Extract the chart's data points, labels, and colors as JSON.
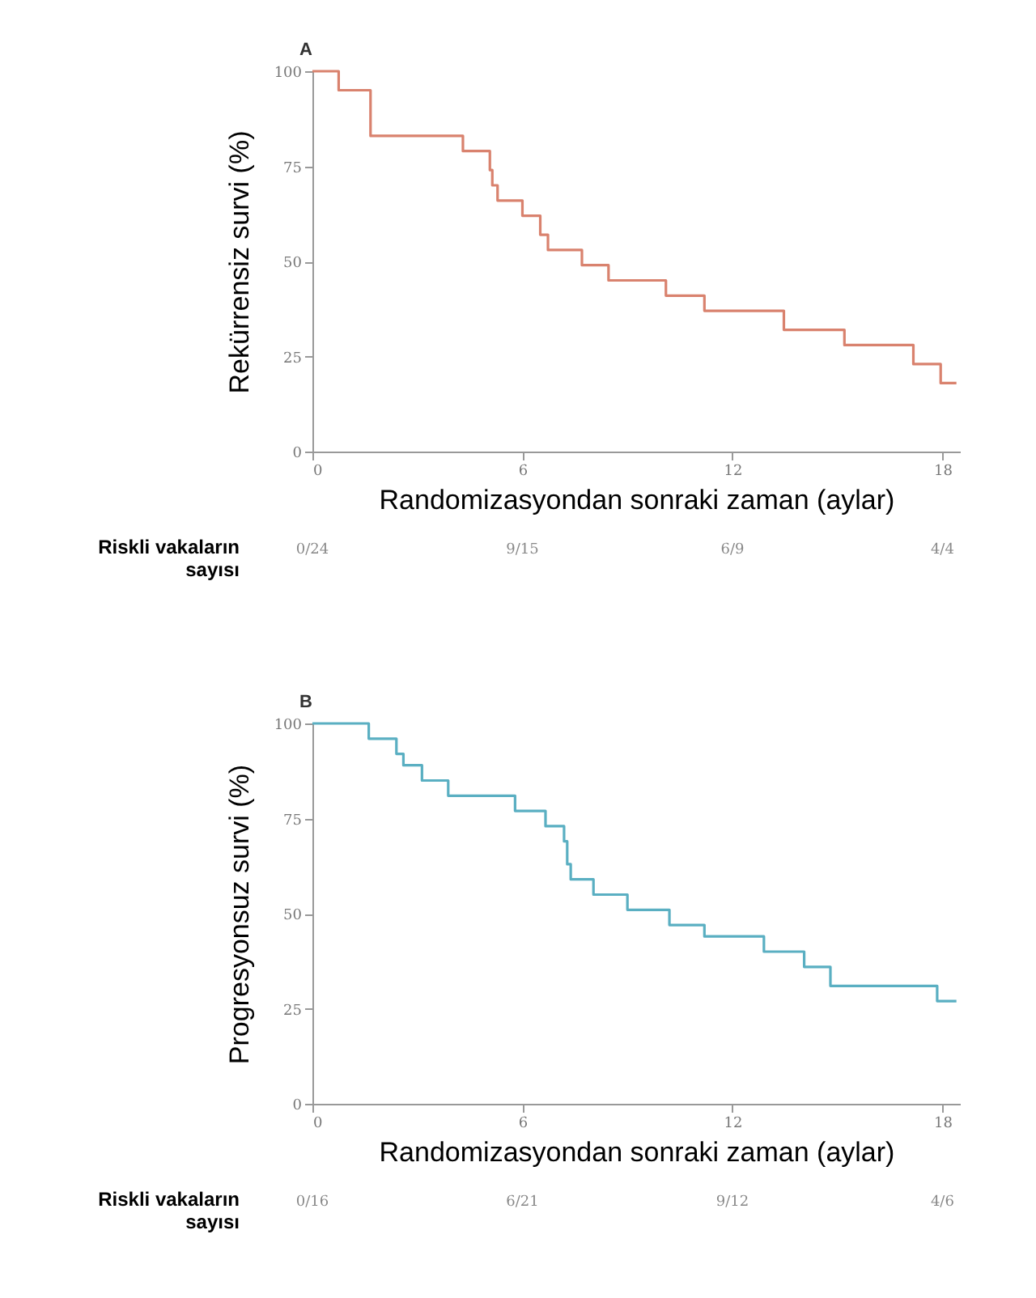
{
  "chart_data": [
    {
      "type": "step",
      "title": "A",
      "xlabel": "Randomizasyondan sonraki zaman (aylar)",
      "ylabel": "Rekürrensiz survi (%)",
      "x": [
        0,
        0.75,
        1.66,
        4.3,
        5.07,
        5.14,
        5.29,
        6.0,
        6.51,
        6.73,
        7.7,
        8.46,
        10.1,
        11.2,
        13.47,
        15.2,
        17.17,
        17.95,
        18.4
      ],
      "series": [
        {
          "color": "#d9826e",
          "values": [
            100,
            95,
            83,
            79,
            74,
            70,
            66,
            62,
            57,
            53,
            49,
            45,
            41,
            37,
            32,
            28,
            23,
            18,
            18
          ]
        }
      ],
      "xlim": [
        0,
        18.5
      ],
      "xticks": [
        0,
        6,
        12,
        18
      ],
      "ylim": [
        0,
        100
      ],
      "yticks": [
        0,
        25,
        50,
        75,
        100
      ],
      "grid": false,
      "annotations": [
        "Riskli vakaların\nsayısı",
        "0/24",
        "9/15",
        "6/9",
        "4/4"
      ]
    },
    {
      "type": "step",
      "title": "B",
      "xlabel": "Randomizasyondan sonraki zaman (aylar)",
      "ylabel": "Progresyonsuz survi (%)",
      "x": [
        0,
        1.61,
        2.4,
        2.6,
        3.13,
        3.88,
        5.79,
        6.66,
        7.19,
        7.28,
        7.38,
        8.03,
        9.0,
        10.2,
        11.2,
        12.9,
        14.05,
        14.8,
        17.85,
        18.4
      ],
      "series": [
        {
          "color": "#5aafc2",
          "values": [
            100,
            96,
            92,
            89,
            85,
            81,
            77,
            73,
            69,
            63,
            59,
            55,
            51,
            47,
            44,
            40,
            36,
            31,
            27,
            27
          ]
        }
      ],
      "xlim": [
        0,
        18.5
      ],
      "xticks": [
        0,
        6,
        12,
        18
      ],
      "ylim": [
        0,
        100
      ],
      "yticks": [
        0,
        25,
        50,
        75,
        100
      ],
      "grid": false,
      "annotations": [
        "Riskli vakaların\nsayısı",
        "0/16",
        "6/21",
        "9/12",
        "4/6"
      ]
    }
  ]
}
